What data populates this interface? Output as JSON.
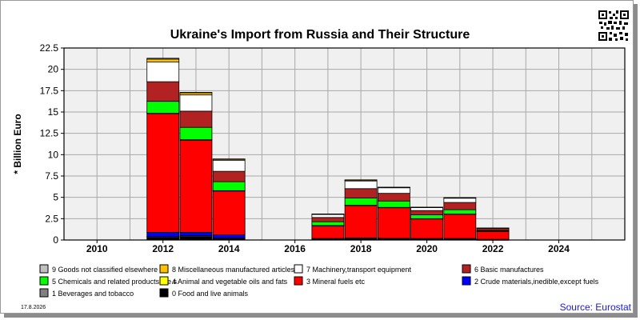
{
  "chart_data": {
    "type": "bar",
    "stacked": true,
    "title": "Ukraine's Import from Russia and Their Structure",
    "ylabel": "* Billion Euro",
    "xlabel": "",
    "ylim": [
      0,
      22.5
    ],
    "yticks": [
      0,
      2.5,
      5,
      7.5,
      10,
      12.5,
      15,
      17.5,
      20,
      22.5
    ],
    "xlim": [
      2009,
      2026
    ],
    "xticks": [
      2010,
      2012,
      2014,
      2016,
      2018,
      2020,
      2022,
      2024
    ],
    "grid": true,
    "legend_position": "bottom",
    "categories": [
      2012,
      2013,
      2014,
      2017,
      2018,
      2019,
      2020,
      2021,
      2022
    ],
    "series": [
      {
        "name": "0 Food and live animals",
        "color": "#000000",
        "values": [
          0.3,
          0.4,
          0.2,
          0.05,
          0.1,
          0.05,
          0.05,
          0.05,
          0.02
        ]
      },
      {
        "name": "1 Beverages and tobacco",
        "color": "#808080",
        "values": [
          0.1,
          0.1,
          0.05,
          0.03,
          0.05,
          0.05,
          0.03,
          0.03,
          0.01
        ]
      },
      {
        "name": "2 Crude materials,inedible,except fuels",
        "color": "#0000ff",
        "values": [
          0.5,
          0.4,
          0.35,
          0.1,
          0.1,
          0.1,
          0.1,
          0.1,
          0.05
        ]
      },
      {
        "name": "3 Mineral fuels etc",
        "color": "#ff0000",
        "values": [
          13.9,
          10.8,
          5.15,
          1.5,
          3.8,
          3.6,
          2.3,
          2.85,
          0.95
        ]
      },
      {
        "name": "4 Animal and vegetable oils and fats",
        "color": "#ffff00",
        "values": [
          0.05,
          0.05,
          0.03,
          0.01,
          0.02,
          0.02,
          0.02,
          0.02,
          0.01
        ]
      },
      {
        "name": "5 Chemicals and related products,n.e.s.",
        "color": "#00ff00",
        "values": [
          1.4,
          1.45,
          1.05,
          0.45,
          0.85,
          0.75,
          0.45,
          0.5,
          0.1
        ]
      },
      {
        "name": "6 Basic manufactures",
        "color": "#b22222",
        "values": [
          2.3,
          1.9,
          1.22,
          0.5,
          1.1,
          0.9,
          0.5,
          0.85,
          0.21
        ]
      },
      {
        "name": "7 Machinery,transport equipment",
        "color": "#ffffff",
        "values": [
          2.3,
          1.9,
          1.3,
          0.35,
          0.9,
          0.65,
          0.35,
          0.5,
          0.05
        ]
      },
      {
        "name": "8 Miscellaneous manufactured articles",
        "color": "#ffc000",
        "values": [
          0.35,
          0.25,
          0.12,
          0.05,
          0.1,
          0.05,
          0.04,
          0.05,
          0.01
        ]
      },
      {
        "name": "9 Goods not classified elsewhere",
        "color": "#c0c0c0",
        "values": [
          0.1,
          0.05,
          0.03,
          0.01,
          0.03,
          0.02,
          0.01,
          0.01,
          0.0
        ]
      }
    ],
    "legend_order": [
      9,
      8,
      7,
      6,
      5,
      4,
      3,
      2,
      1,
      0
    ],
    "date": "17.8.2026",
    "source": "Source: Eurostat",
    "plot_bg": "#f0f0f0"
  }
}
